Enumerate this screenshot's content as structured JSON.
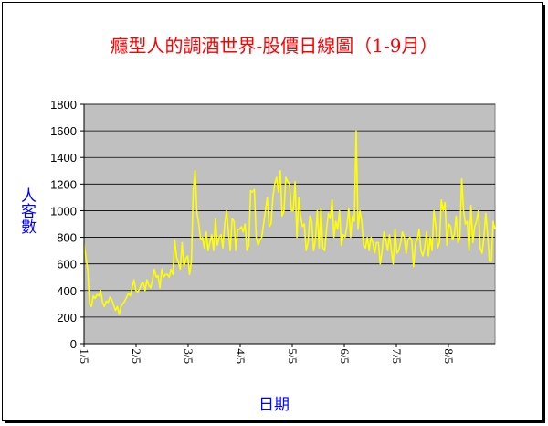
{
  "chart_data": {
    "type": "line",
    "title": "癮型人的調酒世界-股價日線圖（1-9月）",
    "xlabel": "日期",
    "ylabel": "人客數",
    "ylim": [
      0,
      1800
    ],
    "yticks": [
      0,
      200,
      400,
      600,
      800,
      1000,
      1200,
      1400,
      1600,
      1800
    ],
    "x_ticklabels": [
      "1/5",
      "2/5",
      "3/5",
      "4/5",
      "5/5",
      "6/5",
      "7/5",
      "8/5"
    ],
    "x_range": [
      "1/5",
      "9/4"
    ],
    "background_color": "#c0c0c0",
    "line_color": "#ffff00",
    "grid": "horizontal",
    "series": [
      {
        "name": "",
        "values": [
          750,
          650,
          560,
          300,
          280,
          360,
          340,
          370,
          360,
          400,
          310,
          280,
          320,
          310,
          350,
          330,
          290,
          250,
          280,
          220,
          280,
          300,
          320,
          350,
          380,
          360,
          420,
          480,
          400,
          390,
          410,
          450,
          460,
          400,
          480,
          440,
          420,
          480,
          560,
          500,
          510,
          420,
          560,
          500,
          520,
          520,
          500,
          560,
          520,
          780,
          650,
          610,
          560,
          760,
          580,
          640,
          660,
          520,
          620,
          1150,
          1300,
          980,
          900,
          780,
          800,
          720,
          840,
          700,
          760,
          820,
          700,
          940,
          740,
          800,
          820,
          720,
          900,
          1000,
          840,
          700,
          940,
          920,
          700,
          860,
          860,
          880,
          840,
          900,
          700,
          740,
          1150,
          1140,
          1160,
          800,
          740,
          780,
          800,
          900,
          1000,
          1100,
          880,
          900,
          1100,
          1200,
          1250,
          1140,
          1300,
          960,
          1000,
          1250,
          1220,
          1200,
          1000,
          1000,
          1220,
          800,
          1100,
          960,
          880,
          900,
          700,
          760,
          960,
          920,
          700,
          780,
          1000,
          720,
          1020,
          720,
          700,
          860,
          980,
          940,
          1080,
          800,
          920,
          860,
          1000,
          740,
          820,
          800,
          880,
          1020,
          800,
          960,
          920,
          1600,
          860,
          1000,
          920,
          740,
          720,
          800,
          700,
          800,
          760,
          680,
          760,
          760,
          600,
          700,
          840,
          780,
          700,
          820,
          700,
          600,
          860,
          680,
          700,
          760,
          840,
          800,
          680,
          780,
          800,
          780,
          580,
          760,
          780,
          860,
          700,
          660,
          720,
          840,
          660,
          800,
          700,
          1000,
          880,
          720,
          760,
          1080,
          1000,
          1060,
          740,
          900,
          880,
          780,
          820,
          960,
          760,
          800,
          1240,
          1000,
          900,
          920,
          700,
          1040,
          760,
          880,
          920,
          1000,
          720,
          680,
          800,
          980,
          820,
          620,
          620,
          920,
          860
        ]
      }
    ]
  }
}
